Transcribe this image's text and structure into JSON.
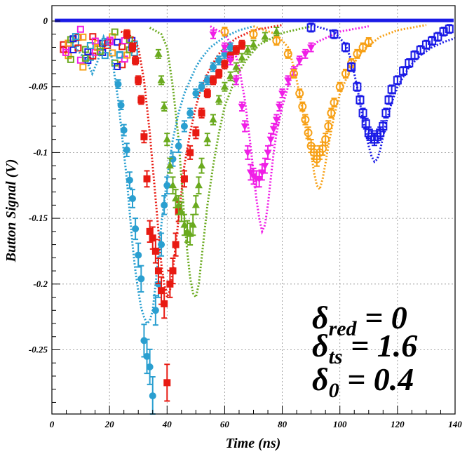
{
  "chart_data": {
    "type": "scatter",
    "xlabel": "Time (ns)",
    "ylabel": "Button Signal (V)",
    "xlim": [
      0,
      140
    ],
    "ylim": [
      -0.3,
      0.005
    ],
    "x_ticks": [
      "0",
      "20",
      "40",
      "60",
      "80",
      "100",
      "120",
      "140"
    ],
    "y_ticks": [
      "0",
      "-0.05",
      "-0.1",
      "-0.15",
      "-0.2",
      "-0.25"
    ],
    "x_tick_values": [
      0,
      20,
      40,
      60,
      80,
      100,
      120,
      140
    ],
    "y_tick_values": [
      0,
      -0.05,
      -0.1,
      -0.15,
      -0.2,
      -0.25
    ],
    "grid": true,
    "annotations": [
      {
        "symbol": "δ",
        "subscript": "red",
        "text": " = 0"
      },
      {
        "symbol": "δ",
        "subscript": "ts",
        "text": " = 1.6"
      },
      {
        "symbol": "δ",
        "subscript": "0",
        "text": " = 0.4"
      }
    ],
    "series": [
      {
        "color": "#2a9fd0",
        "marker": "circle-filled",
        "data_x": [
          23,
          24,
          25,
          26,
          27,
          28,
          29,
          30,
          31,
          32,
          33,
          34,
          35,
          36,
          37,
          38,
          39,
          40,
          42,
          44,
          46,
          48,
          50,
          52,
          54,
          56,
          58,
          60,
          62
        ],
        "data_y": [
          -0.048,
          -0.064,
          -0.083,
          -0.098,
          -0.121,
          -0.135,
          -0.158,
          -0.178,
          -0.196,
          -0.243,
          -0.255,
          -0.263,
          -0.285,
          -0.22,
          -0.2,
          -0.17,
          -0.14,
          -0.125,
          -0.105,
          -0.095,
          -0.08,
          -0.07,
          -0.055,
          -0.05,
          -0.045,
          -0.035,
          -0.03,
          -0.025,
          -0.02
        ],
        "fit_x": [
          8,
          12,
          14,
          16,
          18,
          20,
          21,
          22,
          23,
          24,
          25,
          26,
          27,
          28,
          29,
          30,
          31,
          32,
          33,
          34,
          35,
          36,
          37,
          38,
          40,
          42,
          44,
          46,
          48,
          50,
          52,
          55,
          60,
          65,
          70
        ],
        "fit_y": [
          -0.02,
          -0.03,
          -0.04,
          -0.03,
          -0.012,
          -0.02,
          -0.03,
          -0.045,
          -0.06,
          -0.08,
          -0.1,
          -0.12,
          -0.145,
          -0.17,
          -0.19,
          -0.205,
          -0.218,
          -0.225,
          -0.23,
          -0.228,
          -0.22,
          -0.2,
          -0.178,
          -0.155,
          -0.12,
          -0.09,
          -0.07,
          -0.055,
          -0.045,
          -0.035,
          -0.028,
          -0.02,
          -0.012,
          -0.007,
          -0.004
        ]
      },
      {
        "color": "#e81a12",
        "marker": "square-filled",
        "data_x": [
          26,
          28,
          29,
          30,
          31,
          32,
          33,
          34,
          35,
          36,
          37,
          38,
          39,
          40,
          41,
          42,
          43,
          44,
          46,
          48,
          50,
          52,
          54,
          56,
          58,
          60,
          62,
          64,
          66
        ],
        "data_y": [
          -0.01,
          -0.02,
          -0.03,
          -0.045,
          -0.06,
          -0.088,
          -0.12,
          -0.16,
          -0.165,
          -0.175,
          -0.19,
          -0.205,
          -0.215,
          -0.275,
          -0.2,
          -0.19,
          -0.17,
          -0.145,
          -0.12,
          -0.1,
          -0.085,
          -0.07,
          -0.055,
          -0.045,
          -0.04,
          -0.033,
          -0.027,
          -0.022,
          -0.018
        ],
        "fit_x": [
          24,
          28,
          30,
          32,
          34,
          36,
          37,
          38,
          39,
          40,
          41,
          42,
          43,
          44,
          45,
          46,
          48,
          50,
          52,
          54,
          56,
          58,
          60,
          64,
          70,
          80
        ],
        "fit_y": [
          -0.008,
          -0.012,
          -0.02,
          -0.045,
          -0.085,
          -0.135,
          -0.16,
          -0.185,
          -0.2,
          -0.21,
          -0.205,
          -0.19,
          -0.17,
          -0.15,
          -0.13,
          -0.11,
          -0.085,
          -0.065,
          -0.05,
          -0.04,
          -0.032,
          -0.025,
          -0.02,
          -0.013,
          -0.007,
          -0.003
        ]
      },
      {
        "color": "#6aaa1e",
        "marker": "triangle-up-filled",
        "data_x": [
          37,
          38,
          39,
          40,
          41,
          42,
          43,
          44,
          45,
          46,
          47,
          48,
          49,
          50,
          51,
          52,
          54,
          56,
          58,
          60,
          62,
          64,
          66,
          68,
          70,
          74,
          78
        ],
        "data_y": [
          -0.025,
          -0.045,
          -0.065,
          -0.09,
          -0.11,
          -0.125,
          -0.135,
          -0.14,
          -0.145,
          -0.155,
          -0.16,
          -0.162,
          -0.155,
          -0.14,
          -0.125,
          -0.11,
          -0.09,
          -0.075,
          -0.06,
          -0.05,
          -0.042,
          -0.035,
          -0.028,
          -0.022,
          -0.018,
          -0.012,
          -0.008
        ],
        "fit_x": [
          34,
          38,
          40,
          42,
          44,
          45,
          46,
          47,
          48,
          49,
          50,
          51,
          52,
          53,
          54,
          56,
          58,
          60,
          64,
          68,
          72,
          80,
          90
        ],
        "fit_y": [
          -0.005,
          -0.01,
          -0.02,
          -0.05,
          -0.09,
          -0.12,
          -0.15,
          -0.175,
          -0.195,
          -0.207,
          -0.21,
          -0.2,
          -0.18,
          -0.16,
          -0.14,
          -0.11,
          -0.085,
          -0.065,
          -0.042,
          -0.028,
          -0.018,
          -0.009,
          -0.004
        ]
      },
      {
        "color": "#f01ee6",
        "marker": "triangle-down-filled",
        "data_x": [
          56,
          60,
          62,
          64,
          66,
          67,
          68,
          69,
          70,
          71,
          72,
          73,
          74,
          75,
          76,
          77,
          78,
          79,
          80,
          82,
          84,
          86,
          88,
          90
        ],
        "data_y": [
          -0.01,
          -0.02,
          -0.03,
          -0.045,
          -0.065,
          -0.08,
          -0.1,
          -0.115,
          -0.118,
          -0.12,
          -0.12,
          -0.115,
          -0.11,
          -0.1,
          -0.09,
          -0.082,
          -0.075,
          -0.065,
          -0.055,
          -0.045,
          -0.038,
          -0.03,
          -0.025,
          -0.02
        ],
        "fit_x": [
          55,
          60,
          63,
          65,
          67,
          69,
          70,
          71,
          72,
          73,
          74,
          75,
          76,
          77,
          78,
          80,
          82,
          84,
          88,
          92,
          100,
          110
        ],
        "fit_y": [
          -0.004,
          -0.01,
          -0.02,
          -0.035,
          -0.06,
          -0.095,
          -0.115,
          -0.135,
          -0.15,
          -0.16,
          -0.155,
          -0.14,
          -0.12,
          -0.1,
          -0.085,
          -0.065,
          -0.05,
          -0.038,
          -0.025,
          -0.016,
          -0.008,
          -0.004
        ]
      },
      {
        "color": "#f7a015",
        "marker": "circle-open",
        "data_x": [
          60,
          70,
          78,
          82,
          84,
          86,
          87,
          88,
          89,
          90,
          91,
          92,
          93,
          94,
          95,
          96,
          97,
          98,
          100,
          102,
          104,
          106,
          108,
          110
        ],
        "data_y": [
          -0.008,
          -0.01,
          -0.015,
          -0.025,
          -0.04,
          -0.055,
          -0.065,
          -0.075,
          -0.085,
          -0.095,
          -0.1,
          -0.105,
          -0.1,
          -0.097,
          -0.09,
          -0.08,
          -0.07,
          -0.062,
          -0.05,
          -0.04,
          -0.032,
          -0.025,
          -0.02,
          -0.016
        ],
        "fit_x": [
          70,
          78,
          82,
          84,
          86,
          88,
          90,
          91,
          92,
          93,
          94,
          95,
          96,
          98,
          100,
          104,
          108,
          114,
          120,
          130
        ],
        "fit_y": [
          -0.004,
          -0.01,
          -0.02,
          -0.035,
          -0.055,
          -0.08,
          -0.1,
          -0.115,
          -0.125,
          -0.128,
          -0.12,
          -0.108,
          -0.095,
          -0.072,
          -0.055,
          -0.035,
          -0.022,
          -0.012,
          -0.007,
          -0.003
        ]
      },
      {
        "color": "#1a1ae6",
        "marker": "square-open",
        "data_x": [
          90,
          98,
          102,
          104,
          106,
          107,
          108,
          109,
          110,
          111,
          112,
          113,
          114,
          115,
          116,
          117,
          118,
          120,
          122,
          124,
          126,
          128,
          130,
          132,
          134,
          136,
          138
        ],
        "data_y": [
          -0.005,
          -0.01,
          -0.02,
          -0.035,
          -0.05,
          -0.06,
          -0.07,
          -0.078,
          -0.085,
          -0.088,
          -0.09,
          -0.088,
          -0.085,
          -0.08,
          -0.07,
          -0.06,
          -0.052,
          -0.045,
          -0.038,
          -0.032,
          -0.026,
          -0.022,
          -0.018,
          -0.015,
          -0.012,
          -0.008,
          -0.006
        ],
        "fit_x": [
          90,
          98,
          102,
          104,
          106,
          108,
          110,
          111,
          112,
          113,
          114,
          115,
          116,
          118,
          120,
          124,
          128,
          132,
          136,
          140
        ],
        "fit_y": [
          -0.003,
          -0.008,
          -0.018,
          -0.03,
          -0.05,
          -0.075,
          -0.095,
          -0.103,
          -0.107,
          -0.105,
          -0.098,
          -0.088,
          -0.078,
          -0.062,
          -0.05,
          -0.035,
          -0.026,
          -0.02,
          -0.016,
          -0.013
        ]
      }
    ]
  }
}
